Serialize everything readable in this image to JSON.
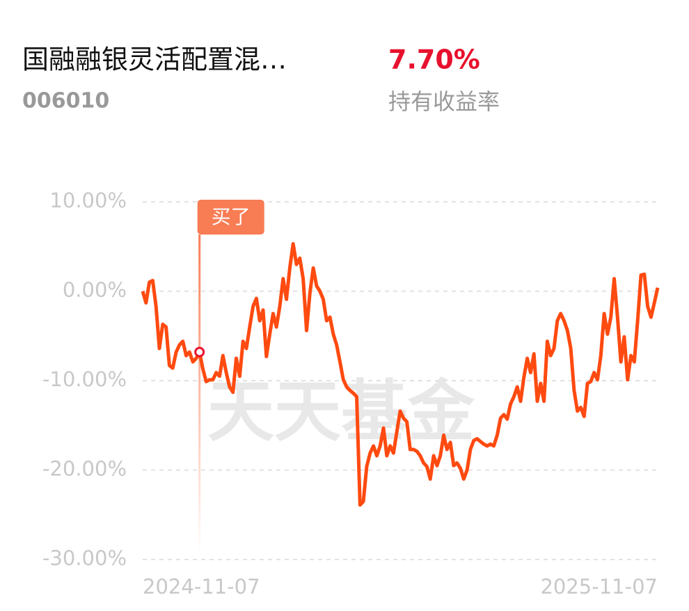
{
  "header": {
    "title": "国融融银灵活配置混…",
    "code": "006010",
    "return": "7.70%",
    "return_label": "持有收益率"
  },
  "chart_data": {
    "type": "line",
    "watermark": "天天基金",
    "color": "#ff4a10",
    "grid": true,
    "ylim": [
      -30,
      10
    ],
    "yticks": [
      {
        "value": 10,
        "label": "10.00%"
      },
      {
        "value": 0,
        "label": "0.00%"
      },
      {
        "value": -10,
        "label": "-10.00%"
      },
      {
        "value": -20,
        "label": "-20.00%"
      },
      {
        "value": -30,
        "label": "-30.00%"
      }
    ],
    "annotation": {
      "text": "买了",
      "index": 17
    },
    "categories": [
      "2024-11-07",
      null,
      null,
      null,
      null,
      null,
      null,
      null,
      null,
      null,
      null,
      null,
      null,
      null,
      null,
      null,
      null,
      null,
      null,
      null,
      null,
      null,
      null,
      null,
      null,
      null,
      null,
      null,
      null,
      null,
      null,
      null,
      null,
      null,
      null,
      null,
      null,
      null,
      null,
      null,
      null,
      null,
      null,
      null,
      null,
      null,
      null,
      null,
      null,
      null,
      null,
      null,
      null,
      null,
      null,
      null,
      null,
      null,
      null,
      null,
      null,
      null,
      null,
      null,
      null,
      null,
      null,
      null,
      null,
      null,
      null,
      null,
      null,
      null,
      null,
      null,
      null,
      null,
      null,
      null,
      null,
      null,
      null,
      null,
      null,
      null,
      null,
      null,
      null,
      null,
      null,
      null,
      null,
      null,
      null,
      null,
      null,
      null,
      null,
      null,
      null,
      null,
      null,
      null,
      null,
      null,
      null,
      null,
      null,
      null,
      null,
      null,
      null,
      null,
      null,
      null,
      null,
      null,
      null,
      null,
      null,
      null,
      null,
      null,
      null,
      null,
      null,
      null,
      null,
      null,
      null,
      null,
      null,
      null,
      null,
      null,
      null,
      null,
      null,
      null,
      null,
      null,
      null,
      null,
      null,
      null,
      null,
      null,
      null,
      null,
      null,
      null,
      null,
      null,
      "2025-11-07"
    ],
    "values": [
      0,
      -1.3,
      1,
      1.2,
      -1.7,
      -6.4,
      -3.7,
      -4,
      -8.3,
      -8.6,
      -6.8,
      -6,
      -5.6,
      -7.2,
      -6.8,
      -7.9,
      -7.5,
      -6.8,
      -8.7,
      -10.1,
      -9.9,
      -9.9,
      -9.1,
      -9.5,
      -7.2,
      -9.1,
      -10.7,
      -11.3,
      -7.5,
      -9.5,
      -5.6,
      -6.4,
      -4,
      -1.7,
      -0.8,
      -3.3,
      -2.1,
      -7.3,
      -4.8,
      -2.5,
      -4,
      -1.7,
      1.4,
      -0.9,
      2.6,
      5.3,
      3,
      3.7,
      1.4,
      -4.4,
      -0.2,
      2.6,
      0.6,
      0,
      -0.9,
      -3.3,
      -2.9,
      -4.8,
      -6,
      -7.9,
      -9.9,
      -10.7,
      -11.1,
      -11.4,
      -11.8,
      -23.9,
      -23.5,
      -19.6,
      -18.1,
      -17.3,
      -18.4,
      -17.3,
      -15.3,
      -18.4,
      -17.3,
      -18.1,
      -15.7,
      -13.4,
      -14.2,
      -14.6,
      -17.7,
      -17.7,
      -17.9,
      -18.4,
      -19.2,
      -19.6,
      -21,
      -18.4,
      -19.5,
      -18.4,
      -16.1,
      -17.7,
      -16.9,
      -19.5,
      -19.2,
      -19.8,
      -21,
      -20,
      -17.7,
      -16.7,
      -16.5,
      -16.8,
      -17.1,
      -17.3,
      -17.1,
      -17.3,
      -16.1,
      -14.2,
      -13.8,
      -14.3,
      -12.6,
      -11.8,
      -10.7,
      -12.3,
      -9.6,
      -7.5,
      -9.1,
      -7,
      -12.3,
      -10.3,
      -12.3,
      -5.6,
      -7.2,
      -6.4,
      -3.3,
      -2.5,
      -3.3,
      -4.4,
      -6.4,
      -11.1,
      -13.4,
      -13,
      -14,
      -10.3,
      -10.1,
      -9.1,
      -9.9,
      -7.2,
      -2.5,
      -4.8,
      -2.9,
      1.4,
      -2.9,
      -7.9,
      -5.1,
      -9.9,
      -7.2,
      -7.9,
      -3.3,
      1.8,
      1.9,
      -1.7,
      -2.9,
      -1.3,
      0.4
    ]
  }
}
